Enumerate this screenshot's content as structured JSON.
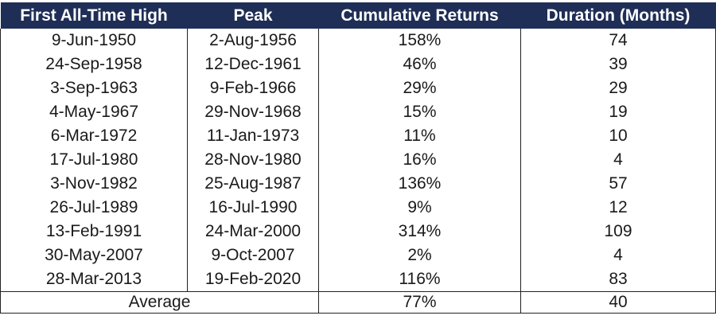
{
  "table": {
    "headers": [
      "First All-Time High",
      "Peak",
      "Cumulative Returns",
      "Duration (Months)"
    ],
    "rows": [
      [
        "9-Jun-1950",
        "2-Aug-1956",
        "158%",
        "74"
      ],
      [
        "24-Sep-1958",
        "12-Dec-1961",
        "46%",
        "39"
      ],
      [
        "3-Sep-1963",
        "9-Feb-1966",
        "29%",
        "29"
      ],
      [
        "4-May-1967",
        "29-Nov-1968",
        "15%",
        "19"
      ],
      [
        "6-Mar-1972",
        "11-Jan-1973",
        "11%",
        "10"
      ],
      [
        "17-Jul-1980",
        "28-Nov-1980",
        "16%",
        "4"
      ],
      [
        "3-Nov-1982",
        "25-Aug-1987",
        "136%",
        "57"
      ],
      [
        "26-Jul-1989",
        "16-Jul-1990",
        "9%",
        "12"
      ],
      [
        "13-Feb-1991",
        "24-Mar-2000",
        "314%",
        "109"
      ],
      [
        "30-May-2007",
        "9-Oct-2007",
        "2%",
        "4"
      ],
      [
        "28-Mar-2013",
        "19-Feb-2020",
        "116%",
        "83"
      ]
    ],
    "footer": {
      "label": "Average",
      "cumulative_returns": "77%",
      "duration_months": "40"
    }
  },
  "colors": {
    "header_background": "#1f2e56",
    "header_text": "#ffffff",
    "body_text": "#1a1a1a",
    "border": "#222222"
  }
}
